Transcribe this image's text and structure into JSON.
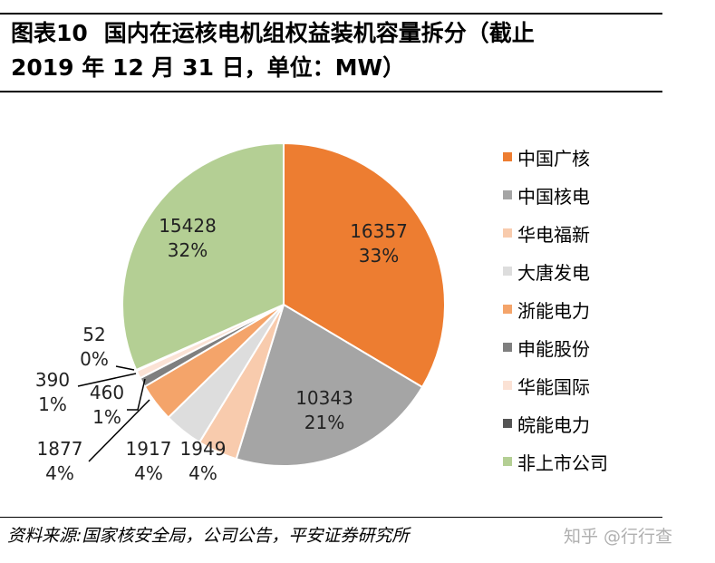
{
  "header": {
    "figure_label": "图表10",
    "title_line1": "国内在运核电机组权益装机容量拆分（截止",
    "title_line2": "2019 年 12 月 31 日，单位：MW）"
  },
  "chart_data": {
    "type": "pie",
    "title": "国内在运核电机组权益装机容量拆分（截止 2019 年 12 月 31 日，单位：MW）",
    "unit": "MW",
    "legend_position": "right",
    "slices": [
      {
        "name": "中国广核",
        "value": 16357,
        "value_label": "16357",
        "pct_label": "33%",
        "color": "#ED7D31"
      },
      {
        "name": "中国核电",
        "value": 10343,
        "value_label": "10343",
        "pct_label": "21%",
        "color": "#A5A5A5"
      },
      {
        "name": "华电福新",
        "value": 1949,
        "value_label": "1949",
        "pct_label": "4%",
        "color": "#F8CBAD"
      },
      {
        "name": "大唐发电",
        "value": 1917,
        "value_label": "1917",
        "pct_label": "4%",
        "color": "#DDDDDD"
      },
      {
        "name": "浙能电力",
        "value": 1877,
        "value_label": "1877",
        "pct_label": "4%",
        "color": "#F4A46A"
      },
      {
        "name": "申能股份",
        "value": 460,
        "value_label": "460",
        "pct_label": "1%",
        "color": "#7F7F7F"
      },
      {
        "name": "华能国际",
        "value": 390,
        "value_label": "390",
        "pct_label": "1%",
        "color": "#FBE2D5"
      },
      {
        "name": "皖能电力",
        "value": 52,
        "value_label": "52",
        "pct_label": "0%",
        "color": "#555555"
      },
      {
        "name": "非上市公司",
        "value": 15428,
        "value_label": "15428",
        "pct_label": "32%",
        "color": "#B4CF94"
      }
    ]
  },
  "footer": {
    "source": "资料来源:国家核安全局，公司公告，平安证券研究所",
    "watermark": "知乎 @行行查"
  }
}
